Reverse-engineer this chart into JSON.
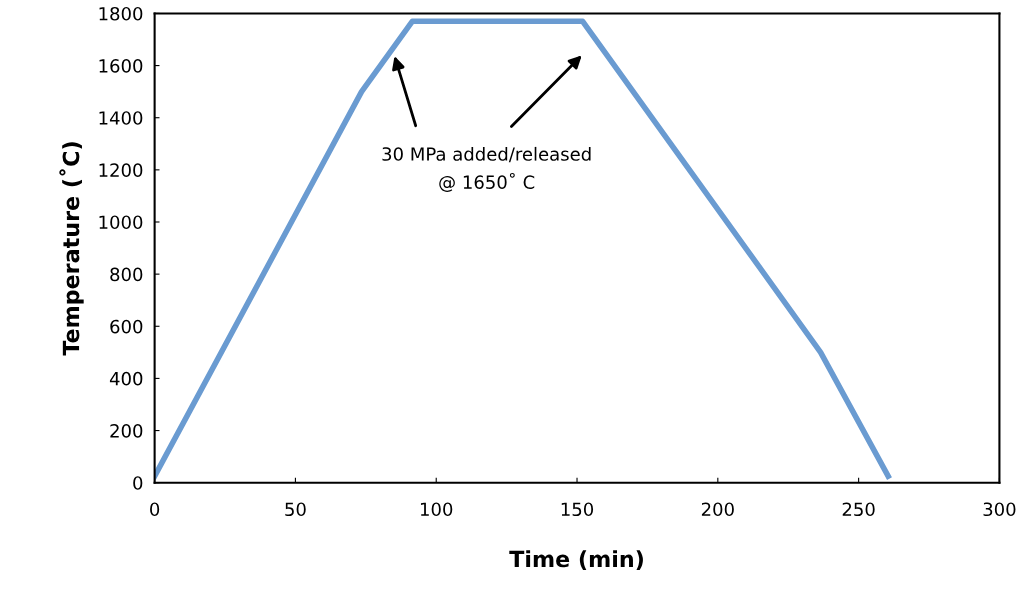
{
  "chart_data": {
    "type": "line",
    "xlabel": "Time (min)",
    "ylabel": "Temperature (˚C)",
    "x": [
      0,
      73.5,
      91.5,
      152,
      236.5,
      260.5
    ],
    "series": [
      {
        "color": "#6a9bd1",
        "values": [
          25,
          1500,
          1770,
          1770,
          500,
          25
        ]
      }
    ],
    "xlim": [
      0,
      300
    ],
    "xticks": [
      0,
      50,
      100,
      150,
      200,
      250,
      300
    ],
    "ylim": [
      0,
      1800
    ],
    "yticks": [
      0,
      200,
      400,
      600,
      800,
      1000,
      1200,
      1400,
      1600,
      1800
    ],
    "grid": false,
    "legend": false,
    "marker": "none",
    "line_style": "solid",
    "annotations": [
      "30 MPa added/released\n@ 1650˚ C"
    ]
  }
}
